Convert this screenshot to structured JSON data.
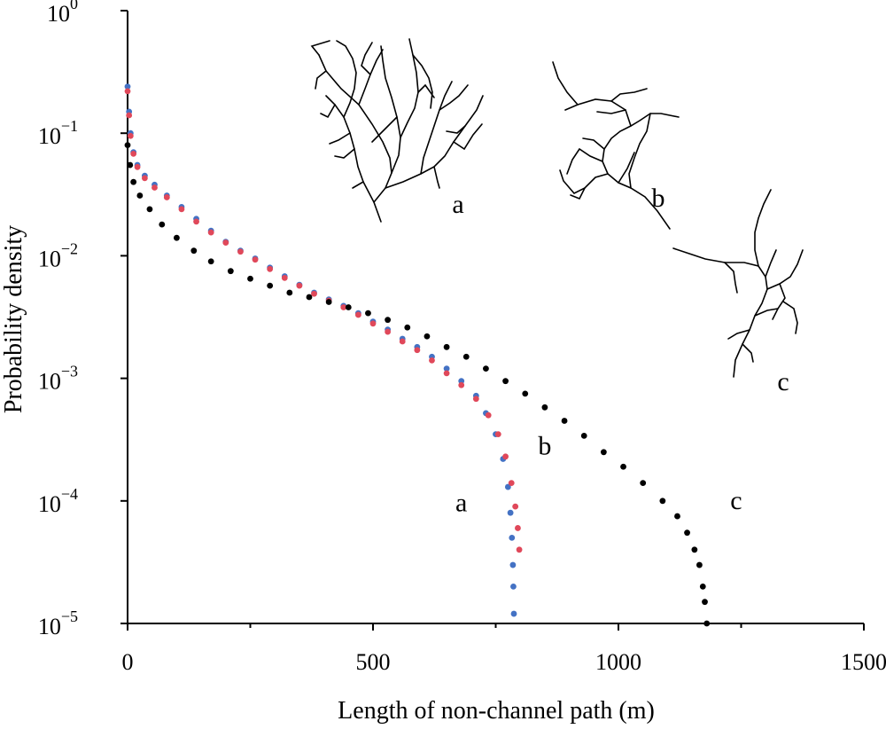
{
  "chart_data": {
    "type": "scatter",
    "title": "",
    "xlabel": "Length of non-channel path (m)",
    "ylabel": "Probability density",
    "xlim": [
      0,
      1500
    ],
    "ylim": [
      1e-05,
      1
    ],
    "yscale": "log",
    "x_ticks": [
      "0",
      "500",
      "1000",
      "1500"
    ],
    "y_ticks": [
      {
        "base": "10",
        "exp": "0"
      },
      {
        "base": "10",
        "exp": "−1"
      },
      {
        "base": "10",
        "exp": "−2"
      },
      {
        "base": "10",
        "exp": "−3"
      },
      {
        "base": "10",
        "exp": "−4"
      },
      {
        "base": "10",
        "exp": "−5"
      }
    ],
    "grid": false,
    "legend": "none",
    "series": [
      {
        "id": "a",
        "color": "#4472c4",
        "points": [
          [
            0,
            0.24
          ],
          [
            3,
            0.15
          ],
          [
            6,
            0.1
          ],
          [
            12,
            0.07
          ],
          [
            20,
            0.055
          ],
          [
            35,
            0.045
          ],
          [
            55,
            0.038
          ],
          [
            80,
            0.031
          ],
          [
            110,
            0.025
          ],
          [
            140,
            0.02
          ],
          [
            170,
            0.016
          ],
          [
            200,
            0.013
          ],
          [
            230,
            0.011
          ],
          [
            260,
            0.0095
          ],
          [
            290,
            0.008
          ],
          [
            320,
            0.0068
          ],
          [
            350,
            0.0058
          ],
          [
            380,
            0.005
          ],
          [
            410,
            0.0044
          ],
          [
            440,
            0.0039
          ],
          [
            470,
            0.0034
          ],
          [
            500,
            0.0029
          ],
          [
            530,
            0.0025
          ],
          [
            560,
            0.0021
          ],
          [
            590,
            0.0018
          ],
          [
            620,
            0.0015
          ],
          [
            650,
            0.0012
          ],
          [
            680,
            0.00095
          ],
          [
            710,
            0.00072
          ],
          [
            730,
            0.00052
          ],
          [
            750,
            0.00035
          ],
          [
            765,
            0.00022
          ],
          [
            775,
            0.00013
          ],
          [
            780,
            8e-05
          ],
          [
            783,
            5e-05
          ],
          [
            785,
            3e-05
          ],
          [
            786,
            2e-05
          ],
          [
            787,
            1.2e-05
          ]
        ]
      },
      {
        "id": "b",
        "color": "#e0485a",
        "points": [
          [
            0,
            0.22
          ],
          [
            3,
            0.14
          ],
          [
            6,
            0.095
          ],
          [
            12,
            0.068
          ],
          [
            20,
            0.053
          ],
          [
            35,
            0.043
          ],
          [
            55,
            0.036
          ],
          [
            80,
            0.03
          ],
          [
            110,
            0.024
          ],
          [
            140,
            0.019
          ],
          [
            170,
            0.0155
          ],
          [
            200,
            0.0128
          ],
          [
            230,
            0.0108
          ],
          [
            260,
            0.0093
          ],
          [
            290,
            0.0078
          ],
          [
            320,
            0.0066
          ],
          [
            350,
            0.0057
          ],
          [
            380,
            0.0049
          ],
          [
            410,
            0.0043
          ],
          [
            440,
            0.0038
          ],
          [
            470,
            0.0033
          ],
          [
            500,
            0.0028
          ],
          [
            530,
            0.0024
          ],
          [
            560,
            0.002
          ],
          [
            590,
            0.0017
          ],
          [
            620,
            0.0014
          ],
          [
            650,
            0.0011
          ],
          [
            680,
            0.00088
          ],
          [
            710,
            0.00068
          ],
          [
            735,
            0.0005
          ],
          [
            755,
            0.00035
          ],
          [
            770,
            0.00023
          ],
          [
            782,
            0.00014
          ],
          [
            790,
            9e-05
          ],
          [
            795,
            6e-05
          ],
          [
            798,
            4e-05
          ]
        ]
      },
      {
        "id": "c",
        "color": "#000000",
        "points": [
          [
            0,
            0.08
          ],
          [
            5,
            0.055
          ],
          [
            12,
            0.04
          ],
          [
            25,
            0.031
          ],
          [
            45,
            0.024
          ],
          [
            70,
            0.018
          ],
          [
            100,
            0.014
          ],
          [
            135,
            0.011
          ],
          [
            170,
            0.009
          ],
          [
            210,
            0.0075
          ],
          [
            250,
            0.0065
          ],
          [
            290,
            0.0057
          ],
          [
            330,
            0.005
          ],
          [
            370,
            0.0046
          ],
          [
            410,
            0.0042
          ],
          [
            450,
            0.0038
          ],
          [
            490,
            0.0034
          ],
          [
            530,
            0.003
          ],
          [
            570,
            0.0026
          ],
          [
            610,
            0.0022
          ],
          [
            650,
            0.0018
          ],
          [
            690,
            0.0015
          ],
          [
            730,
            0.0012
          ],
          [
            770,
            0.00095
          ],
          [
            810,
            0.00075
          ],
          [
            850,
            0.00058
          ],
          [
            890,
            0.00045
          ],
          [
            930,
            0.00034
          ],
          [
            970,
            0.00025
          ],
          [
            1010,
            0.00019
          ],
          [
            1050,
            0.00014
          ],
          [
            1090,
            0.0001
          ],
          [
            1120,
            7.5e-05
          ],
          [
            1140,
            5.5e-05
          ],
          [
            1155,
            4e-05
          ],
          [
            1165,
            3e-05
          ],
          [
            1172,
            2e-05
          ],
          [
            1176,
            1.5e-05
          ],
          [
            1180,
            1e-05
          ]
        ]
      }
    ],
    "curve_labels": [
      {
        "text": "a",
        "x": 680,
        "y": 8.2e-05
      },
      {
        "text": "b",
        "x": 850,
        "y": 0.00024
      },
      {
        "text": "c",
        "x": 1240,
        "y": 8.6e-05
      }
    ],
    "network_labels": [
      "a",
      "b",
      "c"
    ]
  }
}
